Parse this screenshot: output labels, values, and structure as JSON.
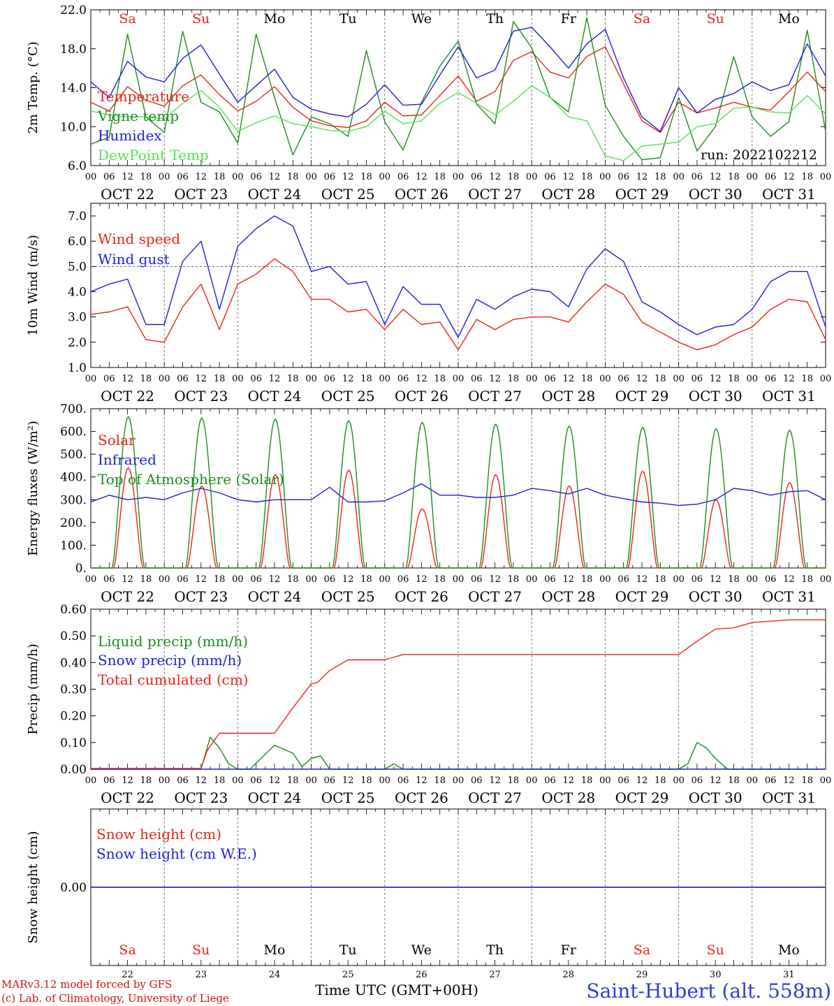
{
  "run_label": "run: 2022102212",
  "station_title": "Saint-Hubert (alt. 558m)",
  "credits": [
    "MARv3.12 model forced by GFS",
    "(c) Lab. of Climatology, University of Liege"
  ],
  "x_title": "Time UTC (GMT+00H)",
  "hour_ticks": [
    "00",
    "06",
    "12",
    "18"
  ],
  "date_labels": [
    "OCT 22",
    "OCT 23",
    "OCT 24",
    "OCT 25",
    "OCT 26",
    "OCT 27",
    "OCT 28",
    "OCT 29",
    "OCT 30",
    "OCT 31"
  ],
  "day_numbers": [
    "22",
    "23",
    "24",
    "25",
    "26",
    "27",
    "28",
    "29",
    "30",
    "31"
  ],
  "weekdays": [
    {
      "label": "Sa",
      "color": "#e8251b"
    },
    {
      "label": "Su",
      "color": "#e8251b"
    },
    {
      "label": "Mo",
      "color": "#000000"
    },
    {
      "label": "Tu",
      "color": "#000000"
    },
    {
      "label": "We",
      "color": "#000000"
    },
    {
      "label": "Th",
      "color": "#000000"
    },
    {
      "label": "Fr",
      "color": "#000000"
    },
    {
      "label": "Sa",
      "color": "#e8251b"
    },
    {
      "label": "Su",
      "color": "#e8251b"
    },
    {
      "label": "Mo",
      "color": "#000000"
    }
  ],
  "chart_data": [
    {
      "type": "line",
      "ylabel": "2m Temp. (°C)",
      "ylim": [
        6,
        22
      ],
      "yticks": [
        "6.0",
        "10.0",
        "14.0",
        "18.0",
        "22.0"
      ],
      "x_unit": "hours since OCT 22 00 UTC",
      "series": [
        {
          "name": "Temperature",
          "color": "#e8251b",
          "x": [
            0,
            6,
            12,
            18,
            24,
            30,
            36,
            42,
            48,
            54,
            60,
            66,
            72,
            78,
            84,
            90,
            96,
            102,
            108,
            114,
            120,
            126,
            132,
            138,
            144,
            150,
            156,
            162,
            168,
            174,
            180,
            186,
            192,
            198,
            204,
            210,
            216,
            222,
            228,
            234,
            240
          ],
          "y": [
            12.5,
            11.6,
            14.1,
            12.7,
            12.1,
            14.2,
            15.3,
            13.3,
            11.6,
            12.6,
            14.1,
            12.0,
            10.6,
            10.1,
            9.9,
            10.6,
            12.5,
            11.1,
            11.2,
            13.2,
            15.2,
            12.6,
            13.6,
            16.8,
            17.7,
            15.6,
            15.0,
            17.2,
            18.2,
            14.4,
            10.6,
            9.4,
            12.5,
            11.4,
            11.9,
            12.5,
            12.0,
            11.7,
            13.6,
            15.6,
            13.6
          ]
        },
        {
          "name": "Vigne temp",
          "color": "#1e8c1e",
          "x": [
            0,
            6,
            12,
            18,
            24,
            30,
            36,
            42,
            48,
            54,
            60,
            66,
            72,
            78,
            84,
            90,
            96,
            102,
            108,
            114,
            120,
            126,
            132,
            138,
            144,
            150,
            156,
            162,
            168,
            174,
            180,
            186,
            192,
            198,
            204,
            210,
            216,
            222,
            228,
            234,
            240
          ],
          "y": [
            8.2,
            8.9,
            19.5,
            11.0,
            9.4,
            19.8,
            12.5,
            11.5,
            8.3,
            19.5,
            13.0,
            7.1,
            11.0,
            10.3,
            9.0,
            17.8,
            10.5,
            7.6,
            12.5,
            16.2,
            18.8,
            12.3,
            10.3,
            20.8,
            18.1,
            13.0,
            11.5,
            21.2,
            12.2,
            9.0,
            6.6,
            6.8,
            13.0,
            7.5,
            10.0,
            17.2,
            11.0,
            9.0,
            10.5,
            19.9,
            9.5
          ]
        },
        {
          "name": "Humidex",
          "color": "#1f1fd6",
          "x": [
            0,
            6,
            12,
            18,
            24,
            30,
            36,
            42,
            48,
            54,
            60,
            66,
            72,
            78,
            84,
            90,
            96,
            102,
            108,
            114,
            120,
            126,
            132,
            138,
            144,
            150,
            156,
            162,
            168,
            174,
            180,
            186,
            192,
            198,
            204,
            210,
            216,
            222,
            228,
            234,
            240
          ],
          "y": [
            14.6,
            13.0,
            16.7,
            15.1,
            14.6,
            17.0,
            18.4,
            15.4,
            12.5,
            14.2,
            15.9,
            13.0,
            11.8,
            11.3,
            11.0,
            12.3,
            14.3,
            12.2,
            12.3,
            15.3,
            18.2,
            15.0,
            15.8,
            19.8,
            20.2,
            18.2,
            16.0,
            18.5,
            20.0,
            15.0,
            11.0,
            9.5,
            14.0,
            11.4,
            12.8,
            13.4,
            14.6,
            13.7,
            14.3,
            18.5,
            15.2
          ]
        },
        {
          "name": "DewPoint Temp",
          "color": "#55e155",
          "x": [
            0,
            6,
            12,
            18,
            24,
            30,
            36,
            42,
            48,
            54,
            60,
            66,
            72,
            78,
            84,
            90,
            96,
            102,
            108,
            114,
            120,
            126,
            132,
            138,
            144,
            150,
            156,
            162,
            168,
            174,
            180,
            186,
            192,
            198,
            204,
            210,
            216,
            222,
            228,
            234,
            240
          ],
          "y": [
            11.6,
            11.2,
            11.0,
            11.0,
            10.8,
            12.4,
            13.7,
            12.0,
            9.5,
            10.4,
            11.1,
            10.3,
            10.0,
            9.6,
            9.5,
            10.0,
            11.6,
            10.3,
            10.6,
            12.4,
            13.5,
            12.4,
            11.2,
            12.6,
            14.2,
            13.0,
            11.0,
            10.6,
            7.0,
            6.5,
            8.0,
            8.2,
            8.4,
            10.0,
            10.3,
            11.9,
            12.0,
            11.5,
            11.4,
            13.2,
            11.3
          ]
        }
      ]
    },
    {
      "type": "line",
      "ylabel": "10m Wind (m/s)",
      "ylim": [
        1,
        7.5
      ],
      "yticks": [
        "1.0",
        "2.0",
        "3.0",
        "4.0",
        "5.0",
        "6.0",
        "7.0"
      ],
      "ref_line": 5.0,
      "series": [
        {
          "name": "Wind speed",
          "color": "#e8251b",
          "x": [
            0,
            6,
            12,
            18,
            24,
            30,
            36,
            42,
            48,
            54,
            60,
            66,
            72,
            78,
            84,
            90,
            96,
            102,
            108,
            114,
            120,
            126,
            132,
            138,
            144,
            150,
            156,
            162,
            168,
            174,
            180,
            186,
            192,
            198,
            204,
            210,
            216,
            222,
            228,
            234,
            240
          ],
          "y": [
            3.1,
            3.2,
            3.4,
            2.1,
            2.0,
            3.4,
            4.3,
            2.5,
            4.3,
            4.7,
            5.3,
            4.8,
            3.7,
            3.7,
            3.2,
            3.3,
            2.5,
            3.3,
            2.7,
            2.8,
            1.7,
            2.9,
            2.5,
            2.9,
            3.0,
            3.0,
            2.8,
            3.6,
            4.3,
            3.9,
            2.8,
            2.4,
            2.0,
            1.7,
            1.9,
            2.3,
            2.6,
            3.3,
            3.7,
            3.6,
            2.1
          ]
        },
        {
          "name": "Wind gust",
          "color": "#1f1fd6",
          "x": [
            0,
            6,
            12,
            18,
            24,
            30,
            36,
            42,
            48,
            54,
            60,
            66,
            72,
            78,
            84,
            90,
            96,
            102,
            108,
            114,
            120,
            126,
            132,
            138,
            144,
            150,
            156,
            162,
            168,
            174,
            180,
            186,
            192,
            198,
            204,
            210,
            216,
            222,
            228,
            234,
            240
          ],
          "y": [
            4.0,
            4.3,
            4.5,
            2.7,
            2.7,
            5.2,
            6.0,
            3.3,
            5.8,
            6.5,
            7.0,
            6.6,
            4.8,
            5.0,
            4.3,
            4.4,
            2.7,
            4.2,
            3.5,
            3.5,
            2.2,
            3.7,
            3.3,
            3.8,
            4.1,
            4.0,
            3.4,
            4.9,
            5.7,
            5.2,
            3.6,
            3.2,
            2.7,
            2.3,
            2.6,
            2.7,
            3.3,
            4.4,
            4.8,
            4.8,
            2.6
          ]
        }
      ]
    },
    {
      "type": "line",
      "ylabel": "Energy fluxes (W/m²)",
      "ylim": [
        0,
        700
      ],
      "yticks": [
        "0.",
        "100.",
        "200.",
        "300.",
        "400.",
        "500.",
        "600.",
        "700."
      ],
      "series": [
        {
          "name": "Solar",
          "color": "#e8251b",
          "curve": "daily-peaks",
          "sunrise_h": 7.5,
          "sunset_h": 17.0,
          "peaks": [
            440,
            360,
            410,
            430,
            260,
            410,
            360,
            425,
            300,
            375
          ]
        },
        {
          "name": "Infrared",
          "color": "#1f1fd6",
          "x": [
            0,
            6,
            12,
            18,
            24,
            30,
            36,
            42,
            48,
            54,
            60,
            66,
            72,
            78,
            84,
            90,
            96,
            102,
            108,
            114,
            120,
            126,
            132,
            138,
            144,
            150,
            156,
            162,
            168,
            174,
            180,
            186,
            192,
            198,
            204,
            210,
            216,
            222,
            228,
            234,
            240
          ],
          "y": [
            290,
            320,
            300,
            310,
            300,
            330,
            350,
            330,
            300,
            290,
            300,
            300,
            300,
            355,
            290,
            290,
            295,
            330,
            370,
            320,
            320,
            310,
            310,
            320,
            350,
            340,
            325,
            350,
            320,
            305,
            290,
            285,
            275,
            280,
            300,
            350,
            340,
            320,
            335,
            340,
            300
          ]
        },
        {
          "name": "Top of Atmosphere (Solar)",
          "color": "#1e8c1e",
          "curve": "daily-peaks",
          "sunrise_h": 7.0,
          "sunset_h": 17.5,
          "peaks": [
            665,
            660,
            655,
            648,
            640,
            632,
            624,
            618,
            612,
            606
          ]
        }
      ]
    },
    {
      "type": "line",
      "ylabel": "Precip (mm/h)",
      "ylim": [
        0,
        0.6
      ],
      "yticks": [
        "0.00",
        "0.10",
        "0.20",
        "0.30",
        "0.40",
        "0.50",
        "0.60"
      ],
      "series": [
        {
          "name": "Liquid precip (mm/h)",
          "color": "#1e8c1e",
          "x": [
            0,
            36,
            39,
            42,
            45,
            48,
            52,
            60,
            66,
            69,
            72,
            75,
            78,
            84,
            96,
            99,
            102,
            192,
            195,
            198,
            201,
            204,
            208,
            216,
            228,
            240
          ],
          "y": [
            0,
            0,
            0.12,
            0.08,
            0.02,
            0,
            0,
            0.09,
            0.06,
            0.01,
            0.04,
            0.05,
            0,
            0,
            0,
            0.02,
            0,
            0,
            0.02,
            0.1,
            0.08,
            0.04,
            0,
            0,
            0,
            0
          ]
        },
        {
          "name": "Snow precip (mm/h)",
          "color": "#1f1fd6",
          "x": [
            0,
            240
          ],
          "y": [
            0,
            0
          ]
        },
        {
          "name": "Total cumulated (cm)",
          "color": "#e8251b",
          "x": [
            0,
            36,
            38,
            42,
            48,
            60,
            66,
            72,
            74,
            78,
            84,
            96,
            102,
            108,
            156,
            192,
            198,
            204,
            210,
            216,
            228,
            240
          ],
          "y": [
            0.003,
            0.003,
            0.07,
            0.135,
            0.135,
            0.135,
            0.23,
            0.32,
            0.325,
            0.37,
            0.41,
            0.41,
            0.43,
            0.43,
            0.43,
            0.43,
            0.48,
            0.525,
            0.53,
            0.55,
            0.56,
            0.56
          ]
        }
      ]
    },
    {
      "type": "line",
      "ylabel": "Snow height (cm)",
      "ylim": [
        -1,
        1
      ],
      "yticks": [
        "0.00"
      ],
      "series": [
        {
          "name": "Snow height (cm)",
          "color": "#e8251b",
          "x": [
            0,
            240
          ],
          "y": [
            0,
            0
          ]
        },
        {
          "name": "Snow height (cm W.E.)",
          "color": "#1f1fd6",
          "x": [
            0,
            240
          ],
          "y": [
            0,
            0
          ]
        }
      ]
    }
  ]
}
